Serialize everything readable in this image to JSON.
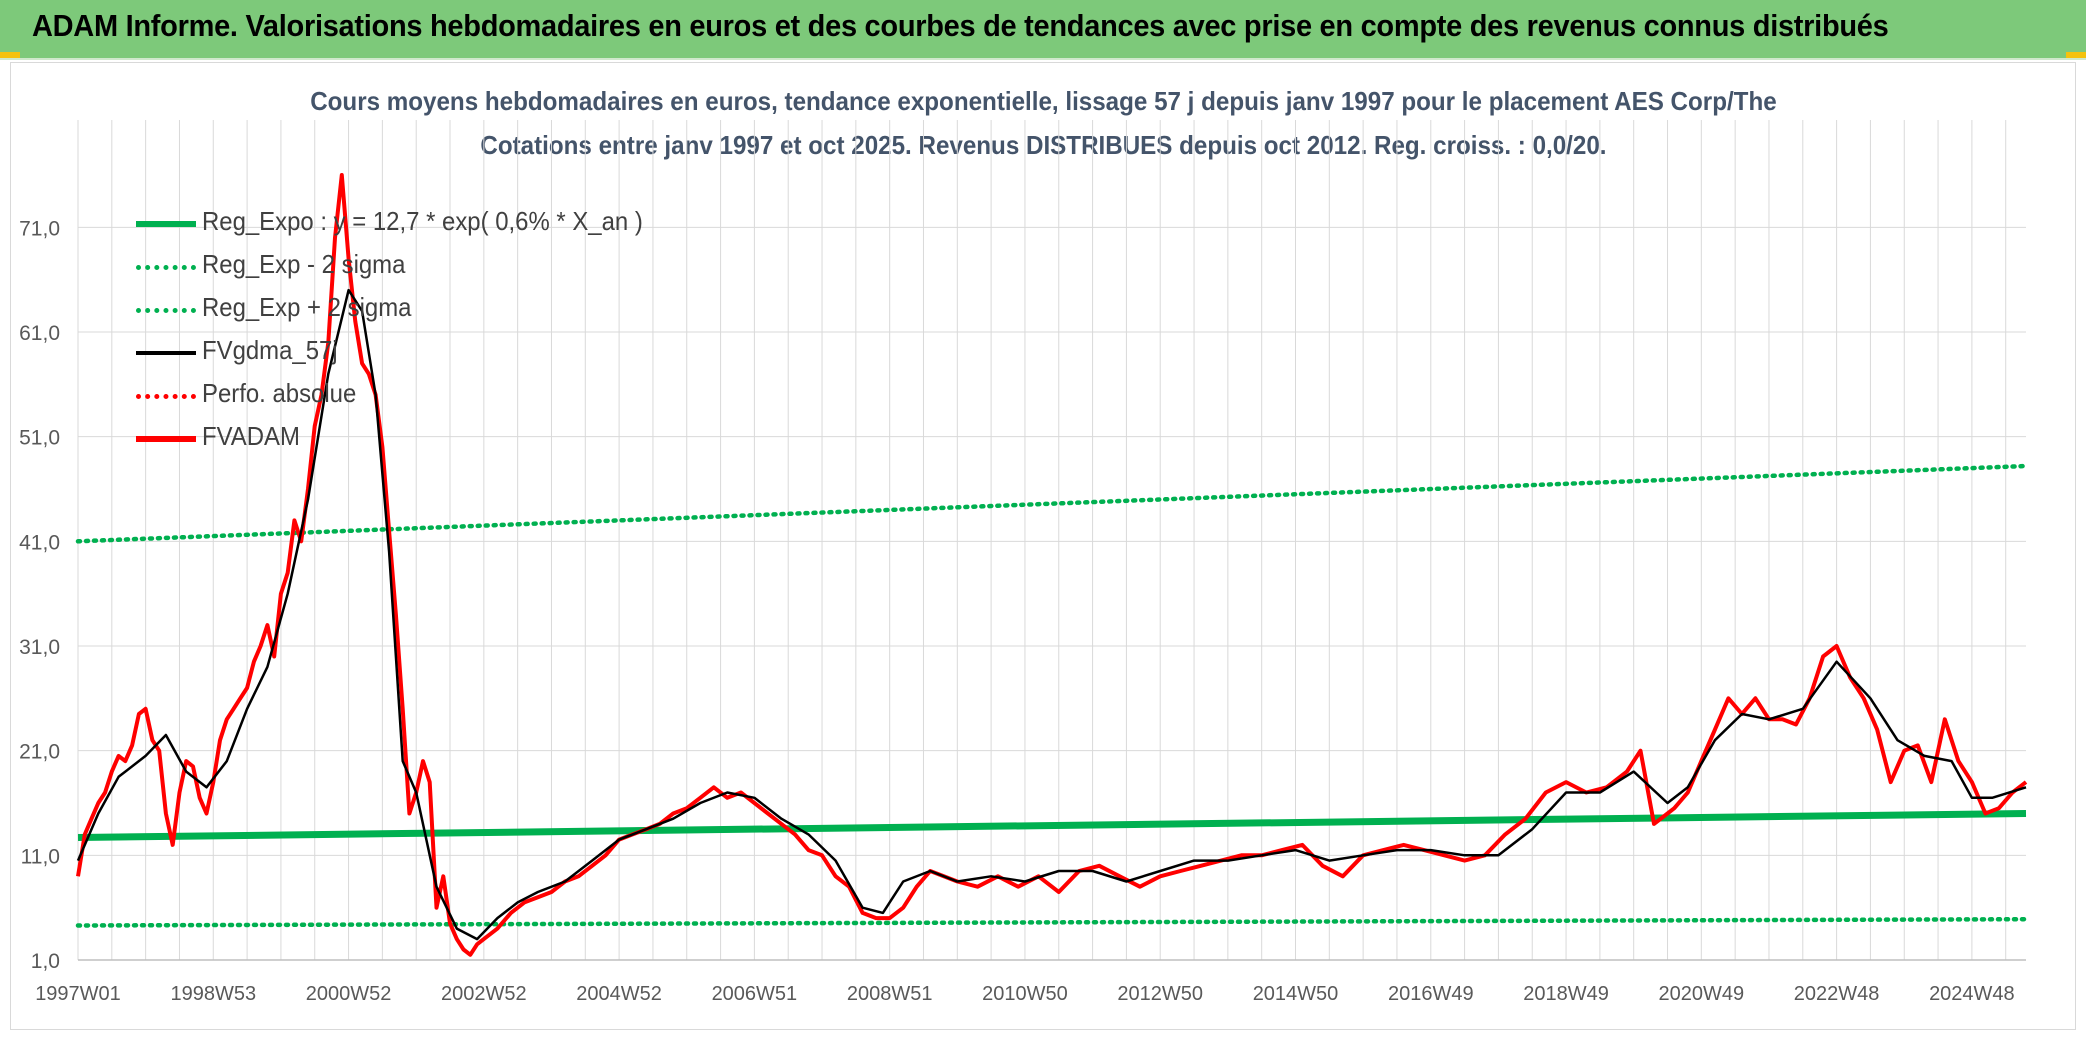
{
  "header": {
    "title": "ADAM Informe. Valorisations hebdomadaires en euros et des courbes de tendances avec prise en compte des revenus connus distribués"
  },
  "colors": {
    "header_bg": "#7dc97a",
    "reg_expo": "#00b050",
    "fvgdma": "#000000",
    "perfo": "#ff0000",
    "fvadam": "#ff0000",
    "grid": "#d9d9d9",
    "axis_text": "#595959",
    "title_text": "#44546a"
  },
  "chart_data": {
    "type": "line",
    "title_line1": "Cours moyens hebdomadaires en euros, tendance exponentielle, lissage 57 j depuis janv 1997 pour le placement AES Corp/The",
    "title_line2": "Cotations entre janv 1997 et oct 2025. Revenus DISTRIBUES depuis oct 2012. Reg. croiss. : 0,0/20.",
    "xlabel": "",
    "ylabel": "",
    "xlim": [
      1997.0,
      2025.8
    ],
    "ylim": [
      1.0,
      76.0
    ],
    "grid": true,
    "legend_position": "top-left",
    "y_ticks": [
      "1,0",
      "11,0",
      "21,0",
      "31,0",
      "41,0",
      "51,0",
      "61,0",
      "71,0"
    ],
    "x_ticks": [
      {
        "label": "1997W01",
        "x": 1997.0
      },
      {
        "label": "1998W53",
        "x": 1999.0
      },
      {
        "label": "2000W52",
        "x": 2001.0
      },
      {
        "label": "2002W52",
        "x": 2003.0
      },
      {
        "label": "2004W52",
        "x": 2005.0
      },
      {
        "label": "2006W51",
        "x": 2007.0
      },
      {
        "label": "2008W51",
        "x": 2009.0
      },
      {
        "label": "2010W50",
        "x": 2011.0
      },
      {
        "label": "2012W50",
        "x": 2013.0
      },
      {
        "label": "2014W50",
        "x": 2015.0
      },
      {
        "label": "2016W49",
        "x": 2017.0
      },
      {
        "label": "2018W49",
        "x": 2019.0
      },
      {
        "label": "2020W49",
        "x": 2021.0
      },
      {
        "label": "2022W48",
        "x": 2023.0
      },
      {
        "label": "2024W48",
        "x": 2025.0
      }
    ],
    "series": [
      {
        "name": "Reg_Expo : y = 12,7 * exp( 0,6% *  X_an )",
        "style": "solid-thick",
        "color": "#00b050",
        "x": [
          1997.0,
          2025.8
        ],
        "y": [
          12.7,
          15.0
        ]
      },
      {
        "name": "Reg_Exp - 2 sigma",
        "style": "dotted",
        "color": "#00b050",
        "x": [
          1997.0,
          2025.8
        ],
        "y": [
          4.3,
          4.9
        ]
      },
      {
        "name": "Reg_Exp + 2 sigma",
        "style": "dotted",
        "color": "#00b050",
        "x": [
          1997.0,
          2025.8
        ],
        "y": [
          41.0,
          48.2
        ]
      },
      {
        "name": "FVgdma_57j",
        "style": "solid",
        "color": "#000000",
        "x": [
          1997.0,
          1997.3,
          1997.6,
          1998.0,
          1998.3,
          1998.6,
          1998.9,
          1999.2,
          1999.5,
          1999.8,
          2000.1,
          2000.4,
          2000.7,
          2001.0,
          2001.2,
          2001.4,
          2001.6,
          2001.8,
          2002.0,
          2002.3,
          2002.6,
          2002.9,
          2003.2,
          2003.5,
          2003.8,
          2004.2,
          2004.6,
          2005.0,
          2005.4,
          2005.8,
          2006.2,
          2006.6,
          2007.0,
          2007.4,
          2007.8,
          2008.2,
          2008.6,
          2008.9,
          2009.2,
          2009.6,
          2010.0,
          2010.5,
          2011.0,
          2011.5,
          2012.0,
          2012.5,
          2013.0,
          2013.5,
          2014.0,
          2014.5,
          2015.0,
          2015.5,
          2016.0,
          2016.5,
          2017.0,
          2017.5,
          2018.0,
          2018.5,
          2019.0,
          2019.5,
          2020.0,
          2020.5,
          2020.8,
          2021.2,
          2021.6,
          2022.0,
          2022.5,
          2023.0,
          2023.5,
          2023.9,
          2024.3,
          2024.7,
          2025.0,
          2025.3,
          2025.8
        ],
        "y": [
          10.5,
          15.0,
          18.5,
          20.5,
          22.5,
          19.0,
          17.5,
          20.0,
          25.0,
          29.0,
          36.0,
          45.0,
          57.0,
          65.0,
          63.0,
          55.0,
          40.0,
          20.0,
          17.0,
          8.0,
          4.0,
          3.0,
          5.0,
          6.5,
          7.5,
          8.5,
          10.5,
          12.5,
          13.5,
          14.5,
          16.0,
          17.0,
          16.5,
          14.5,
          13.0,
          10.5,
          6.0,
          5.5,
          8.5,
          9.5,
          8.5,
          9.0,
          8.5,
          9.5,
          9.5,
          8.5,
          9.5,
          10.5,
          10.5,
          11.0,
          11.5,
          10.5,
          11.0,
          11.5,
          11.5,
          11.0,
          11.0,
          13.5,
          17.0,
          17.0,
          19.0,
          16.0,
          17.5,
          22.0,
          24.5,
          24.0,
          25.0,
          29.5,
          26.0,
          22.0,
          20.5,
          20.0,
          16.5,
          16.5,
          17.5
        ]
      },
      {
        "name": "Perfo. absolue",
        "style": "dotted",
        "color": "#ff0000",
        "x": [],
        "y": []
      },
      {
        "name": "FVADAM",
        "style": "solid-thick",
        "color": "#ff0000",
        "x": [
          1997.0,
          1997.1,
          1997.2,
          1997.3,
          1997.4,
          1997.5,
          1997.6,
          1997.7,
          1997.8,
          1997.9,
          1998.0,
          1998.1,
          1998.2,
          1998.3,
          1998.4,
          1998.5,
          1998.6,
          1998.7,
          1998.8,
          1998.9,
          1999.0,
          1999.1,
          1999.2,
          1999.3,
          1999.4,
          1999.5,
          1999.6,
          1999.7,
          1999.8,
          1999.9,
          2000.0,
          2000.1,
          2000.2,
          2000.3,
          2000.4,
          2000.5,
          2000.6,
          2000.7,
          2000.8,
          2000.9,
          2001.0,
          2001.1,
          2001.2,
          2001.3,
          2001.4,
          2001.5,
          2001.6,
          2001.7,
          2001.8,
          2001.9,
          2002.0,
          2002.1,
          2002.2,
          2002.3,
          2002.4,
          2002.5,
          2002.6,
          2002.7,
          2002.8,
          2002.9,
          2003.0,
          2003.2,
          2003.4,
          2003.6,
          2003.8,
          2004.0,
          2004.2,
          2004.4,
          2004.6,
          2004.8,
          2005.0,
          2005.2,
          2005.4,
          2005.6,
          2005.8,
          2006.0,
          2006.2,
          2006.4,
          2006.6,
          2006.8,
          2007.0,
          2007.2,
          2007.4,
          2007.6,
          2007.8,
          2008.0,
          2008.2,
          2008.4,
          2008.6,
          2008.8,
          2009.0,
          2009.2,
          2009.4,
          2009.6,
          2009.8,
          2010.0,
          2010.3,
          2010.6,
          2010.9,
          2011.2,
          2011.5,
          2011.8,
          2012.1,
          2012.4,
          2012.7,
          2013.0,
          2013.3,
          2013.6,
          2013.9,
          2014.2,
          2014.5,
          2014.8,
          2015.1,
          2015.4,
          2015.7,
          2016.0,
          2016.3,
          2016.6,
          2016.9,
          2017.2,
          2017.5,
          2017.8,
          2018.1,
          2018.4,
          2018.7,
          2019.0,
          2019.3,
          2019.6,
          2019.9,
          2020.1,
          2020.3,
          2020.5,
          2020.6,
          2020.8,
          2021.0,
          2021.2,
          2021.4,
          2021.6,
          2021.8,
          2022.0,
          2022.2,
          2022.4,
          2022.6,
          2022.8,
          2023.0,
          2023.2,
          2023.4,
          2023.6,
          2023.8,
          2024.0,
          2024.2,
          2024.4,
          2024.6,
          2024.8,
          2025.0,
          2025.2,
          2025.4,
          2025.6,
          2025.8
        ],
        "y": [
          9.0,
          13.0,
          14.5,
          16.0,
          17.0,
          19.0,
          20.5,
          20.0,
          21.5,
          24.5,
          25.0,
          22.0,
          21.0,
          15.0,
          12.0,
          17.0,
          20.0,
          19.5,
          16.5,
          15.0,
          18.0,
          22.0,
          24.0,
          25.0,
          26.0,
          27.0,
          29.5,
          31.0,
          33.0,
          30.0,
          36.0,
          38.0,
          43.0,
          41.0,
          46.0,
          52.0,
          55.0,
          60.0,
          70.0,
          76.0,
          68.0,
          62.0,
          58.0,
          57.0,
          55.0,
          50.0,
          42.0,
          34.0,
          25.0,
          15.0,
          17.0,
          20.0,
          18.0,
          6.0,
          9.0,
          4.5,
          3.0,
          2.0,
          1.5,
          2.5,
          3.0,
          4.0,
          5.5,
          6.5,
          7.0,
          7.5,
          8.5,
          9.0,
          10.0,
          11.0,
          12.5,
          13.0,
          13.5,
          14.0,
          15.0,
          15.5,
          16.5,
          17.5,
          16.5,
          17.0,
          16.0,
          15.0,
          14.0,
          13.0,
          11.5,
          11.0,
          9.0,
          8.0,
          5.5,
          5.0,
          5.0,
          6.0,
          8.0,
          9.5,
          9.0,
          8.5,
          8.0,
          9.0,
          8.0,
          9.0,
          7.5,
          9.5,
          10.0,
          9.0,
          8.0,
          9.0,
          9.5,
          10.0,
          10.5,
          11.0,
          11.0,
          11.5,
          12.0,
          10.0,
          9.0,
          11.0,
          11.5,
          12.0,
          11.5,
          11.0,
          10.5,
          11.0,
          13.0,
          14.5,
          17.0,
          18.0,
          17.0,
          17.5,
          19.0,
          21.0,
          14.0,
          15.0,
          15.5,
          17.0,
          20.0,
          23.0,
          26.0,
          24.5,
          26.0,
          24.0,
          24.0,
          23.5,
          26.0,
          30.0,
          31.0,
          28.0,
          26.0,
          23.0,
          18.0,
          21.0,
          21.5,
          18.0,
          24.0,
          20.0,
          18.0,
          15.0,
          15.5,
          17.0,
          18.0
        ]
      }
    ]
  }
}
